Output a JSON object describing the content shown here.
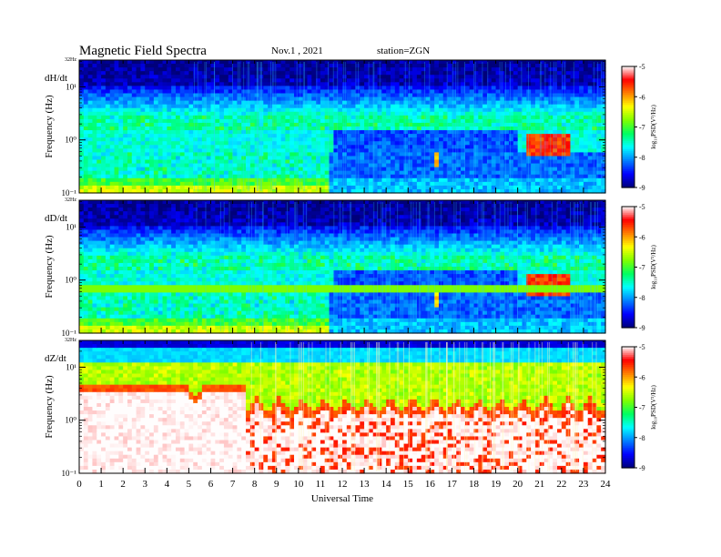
{
  "header": {
    "title": "Magnetic  Field  Spectra",
    "date": "Nov.1  ,  2021",
    "station": "station=ZGN"
  },
  "colors": {
    "colormap": [
      "#00007a",
      "#0000ff",
      "#0080ff",
      "#00ffff",
      "#00ff60",
      "#80ff00",
      "#ffff00",
      "#ff8000",
      "#ff0000",
      "#ffffff"
    ]
  },
  "chart_data": [
    {
      "type": "heatmap",
      "panel_label": "dH/dt",
      "ylabel": "Frequency  (Hz)",
      "xlabel": "Universal Time",
      "xlim": [
        0,
        24
      ],
      "xticks": [
        "0",
        "1",
        "2",
        "3",
        "4",
        "5",
        "6",
        "7",
        "8",
        "9",
        "10",
        "11",
        "12",
        "13",
        "14",
        "15",
        "16",
        "17",
        "18",
        "19",
        "20",
        "21",
        "22",
        "23",
        "24"
      ],
      "yscale": "log",
      "ylim": [
        0.1,
        32
      ],
      "ytick_top": "32Hz",
      "yticks": [
        "10¹",
        "10⁰",
        "10⁻¹"
      ],
      "colorbar": {
        "label": "log₁₀PSD(V²/Hz)",
        "ticks": [
          "-5",
          "-6",
          "-7",
          "-8",
          "-9"
        ],
        "range": [
          -9,
          -5
        ]
      }
    },
    {
      "type": "heatmap",
      "panel_label": "dD/dt",
      "ylabel": "Frequency  (Hz)",
      "xlabel": "Universal Time",
      "xlim": [
        0,
        24
      ],
      "xticks": [
        "0",
        "1",
        "2",
        "3",
        "4",
        "5",
        "6",
        "7",
        "8",
        "9",
        "10",
        "11",
        "12",
        "13",
        "14",
        "15",
        "16",
        "17",
        "18",
        "19",
        "20",
        "21",
        "22",
        "23",
        "24"
      ],
      "yscale": "log",
      "ylim": [
        0.1,
        32
      ],
      "ytick_top": "32Hz",
      "yticks": [
        "10¹",
        "10⁰",
        "10⁻¹"
      ],
      "colorbar": {
        "label": "log₁₀PSD(V²/Hz)",
        "ticks": [
          "-5",
          "-6",
          "-7",
          "-8",
          "-9"
        ],
        "range": [
          -9,
          -5
        ]
      }
    },
    {
      "type": "heatmap",
      "panel_label": "dZ/dt",
      "ylabel": "Frequency  (Hz)",
      "xlabel": "Universal Time",
      "xlim": [
        0,
        24
      ],
      "xticks": [
        "0",
        "1",
        "2",
        "3",
        "4",
        "5",
        "6",
        "7",
        "8",
        "9",
        "10",
        "11",
        "12",
        "13",
        "14",
        "15",
        "16",
        "17",
        "18",
        "19",
        "20",
        "21",
        "22",
        "23",
        "24"
      ],
      "yscale": "log",
      "ylim": [
        0.1,
        32
      ],
      "ytick_top": "32Hz",
      "yticks": [
        "10¹",
        "10⁰",
        "10⁻¹"
      ],
      "colorbar": {
        "label": "log₁₀PSD(V²/Hz)",
        "ticks": [
          "-5",
          "-6",
          "-7",
          "-8",
          "-9"
        ],
        "range": [
          -9,
          -5
        ]
      }
    }
  ]
}
